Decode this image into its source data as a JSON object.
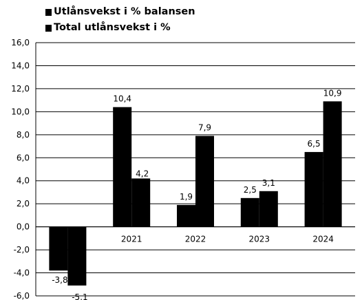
{
  "chart_data": {
    "type": "bar",
    "categories": [
      "",
      "2021",
      "2022",
      "2023",
      "2024"
    ],
    "series": [
      {
        "name": "Utlånsvekst i % balansen",
        "values": [
          -3.8,
          10.4,
          1.9,
          2.5,
          6.5
        ],
        "labels": [
          "-3,8",
          "10,4",
          "1,9",
          "2,5",
          "6,5"
        ],
        "color": "#000000"
      },
      {
        "name": "Total utlånsvekst i %",
        "values": [
          -5.1,
          4.2,
          7.9,
          3.1,
          10.9
        ],
        "labels": [
          "-5,1",
          "4,2",
          "7,9",
          "3,1",
          "10,9"
        ],
        "color": "#000000"
      }
    ],
    "yticks": [
      16,
      14,
      12,
      10,
      8,
      6,
      4,
      2,
      0,
      -2,
      -4,
      -6
    ],
    "ytick_labels": [
      "16,0",
      "14,0",
      "12,0",
      "10,0",
      "8,0",
      "6,0",
      "4,0",
      "2,0",
      "0,0",
      "-2,0",
      "-4,0",
      "-6,0"
    ],
    "ylim": [
      -6,
      16
    ],
    "grid": true,
    "legend_position": "top-left"
  }
}
